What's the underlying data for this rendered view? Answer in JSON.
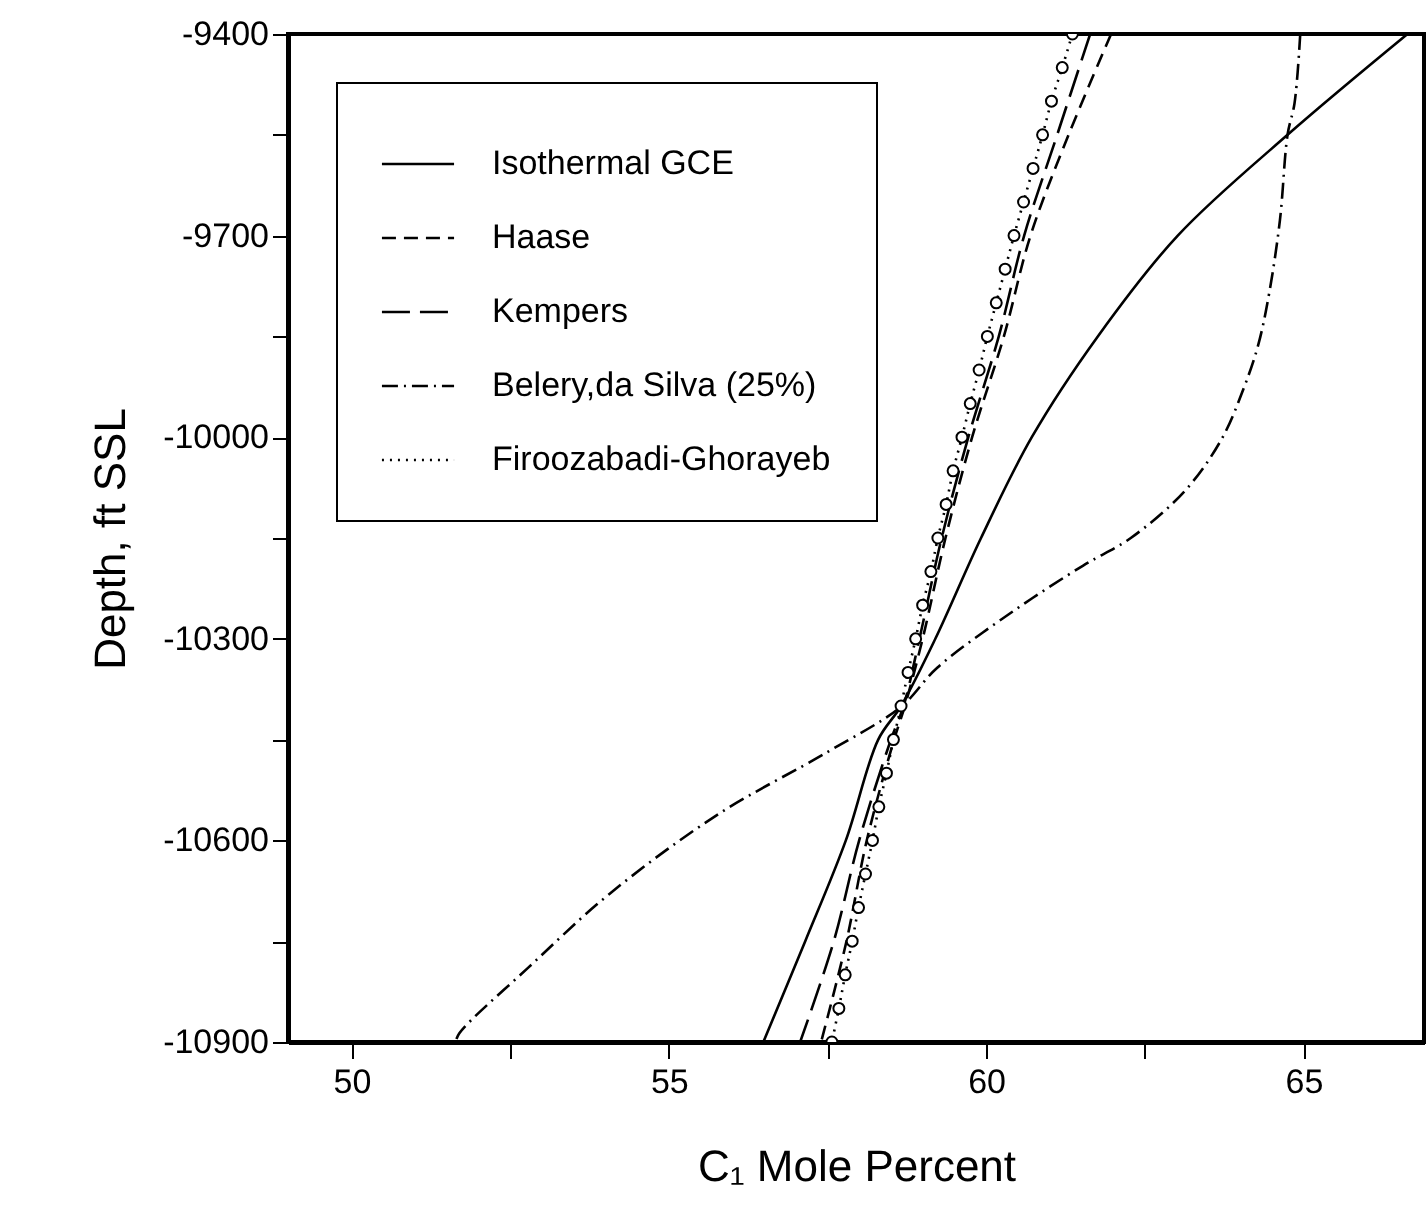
{
  "chart_data": {
    "type": "line",
    "xlabel": "C₁ Mole Percent",
    "ylabel": "Depth, ft SSL",
    "xlim": [
      49,
      66.9
    ],
    "xticks": [
      50,
      {
        "value": 52.5,
        "label": null
      },
      55,
      {
        "value": 57.5,
        "label": null
      },
      60,
      {
        "value": 62.5,
        "label": null
      },
      65
    ],
    "ylim": [
      -10900,
      -9400
    ],
    "yticks": [
      -10900,
      {
        "value": -10750,
        "label": null
      },
      -10600,
      {
        "value": -10450,
        "label": null
      },
      -10300,
      {
        "value": -10150,
        "label": null
      },
      -10000,
      {
        "value": -9850,
        "label": null
      },
      -9700,
      {
        "value": -9550,
        "label": null
      },
      -9400
    ],
    "legend": "top left",
    "series": [
      {
        "name": "Isothermal GCE",
        "color": "#000000",
        "line_style": "solid",
        "x": [
          66.64,
          64.75,
          63.02,
          61.76,
          60.72,
          59.92,
          59.2,
          58.66,
          58.3,
          57.79,
          57.15,
          56.49
        ],
        "values": [
          -9400,
          -9550,
          -9700,
          -9850,
          -10000,
          -10150,
          -10300,
          -10400,
          -10450,
          -10600,
          -10750,
          -10900
        ]
      },
      {
        "name": "Haase",
        "color": "#000000",
        "line_style": "dashed",
        "x": [
          61.97,
          61.3,
          60.7,
          60.28,
          59.78,
          59.36,
          59.0,
          58.72,
          58.55,
          58.12,
          57.8,
          57.4
        ],
        "values": [
          -9400,
          -9550,
          -9700,
          -9850,
          -10000,
          -10150,
          -10300,
          -10400,
          -10450,
          -10600,
          -10750,
          -10900
        ]
      },
      {
        "name": "Kempers",
        "color": "#000000",
        "line_style": "longdash",
        "x": [
          61.64,
          61.12,
          60.6,
          60.2,
          59.72,
          59.3,
          58.95,
          58.7,
          58.5,
          58.0,
          57.6,
          57.07
        ],
        "values": [
          -9400,
          -9550,
          -9700,
          -9850,
          -10000,
          -10150,
          -10300,
          -10400,
          -10450,
          -10600,
          -10750,
          -10900
        ]
      },
      {
        "name": "Belery,da Silva (25%)",
        "color": "#000000",
        "line_style": "dashdot",
        "x": [
          64.95,
          64.86,
          64.75,
          64.63,
          64.46,
          64.29,
          64.06,
          63.71,
          63.14,
          62.28,
          61.53,
          60.38,
          59.23,
          58.66,
          57.51,
          55.78,
          54.06,
          52.79,
          51.7,
          51.64
        ],
        "values": [
          -9400,
          -9503,
          -9550,
          -9677,
          -9786,
          -9862,
          -9927,
          -10003,
          -10079,
          -10150,
          -10191,
          -10262,
          -10343,
          -10401,
          -10468,
          -10561,
          -10680,
          -10789,
          -10887,
          -10900
        ]
      },
      {
        "name": "Firoozabadi-Ghorayeb",
        "color": "#000000",
        "line_style": "dotted",
        "marker": "circle",
        "x": [
          61.36,
          61.2,
          61.03,
          60.89,
          60.74,
          60.59,
          60.44,
          60.3,
          60.16,
          60.02,
          59.89,
          59.75,
          59.62,
          59.48,
          59.37,
          59.24,
          59.13,
          59.0,
          58.89,
          58.77,
          58.66,
          58.54,
          58.43,
          58.31,
          58.21,
          58.1,
          57.99,
          57.89,
          57.78,
          57.68,
          57.57
        ],
        "values": [
          -9400,
          -9450,
          -9500,
          -9550,
          -9600,
          -9650,
          -9700,
          -9750,
          -9800,
          -9850,
          -9900,
          -9950,
          -10000,
          -10050,
          -10100,
          -10150,
          -10200,
          -10250,
          -10300,
          -10350,
          -10400,
          -10450,
          -10500,
          -10550,
          -10600,
          -10650,
          -10700,
          -10750,
          -10800,
          -10850,
          -10900
        ]
      }
    ]
  }
}
